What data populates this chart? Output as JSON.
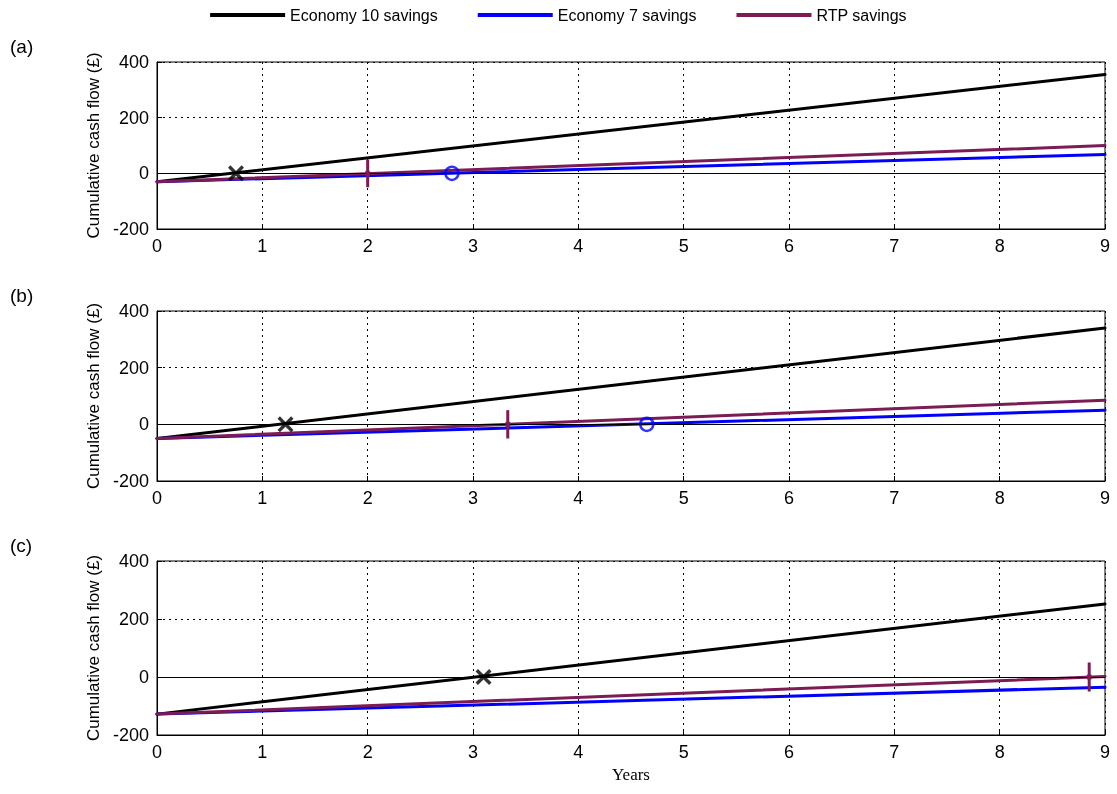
{
  "chart_data": [
    {
      "type": "line",
      "title": "(a)",
      "ylabel": "Cumulative cash flow (£)",
      "xlim": [
        0,
        9
      ],
      "xticks": [
        0,
        1,
        2,
        3,
        4,
        5,
        6,
        7,
        8,
        9
      ],
      "ylim": [
        -200,
        400
      ],
      "yticks": [
        -200,
        0,
        200,
        400
      ],
      "grid": true,
      "legend": "top",
      "ref_lines": [
        {
          "axis": "y",
          "value": 0,
          "color": "#000000"
        }
      ],
      "series": [
        {
          "name": "Economy 10 savings",
          "color": "#000000",
          "x": [
            0,
            9
          ],
          "values": [
            -30,
            355
          ]
        },
        {
          "name": "Economy 7 savings",
          "color": "#0000ff",
          "x": [
            0,
            9
          ],
          "values": [
            -30,
            68
          ]
        },
        {
          "name": "RTP savings",
          "color": "#7b1c55",
          "x": [
            0,
            9
          ],
          "values": [
            -30,
            100
          ]
        },
        {
          "type": "scatter",
          "marker": "cross",
          "color": "#000000",
          "x": [
            0.75
          ],
          "values": [
            0
          ]
        },
        {
          "type": "scatter",
          "marker": "circle",
          "color": "#0000ff",
          "x": [
            2.8
          ],
          "values": [
            0
          ]
        },
        {
          "type": "scatter",
          "marker": "square",
          "color": "#7b1c55",
          "x": [
            2
          ],
          "values": [
            0
          ],
          "errors": [
            50
          ]
        }
      ]
    },
    {
      "type": "line",
      "title": "(b)",
      "ylabel": "Cumulative cash flow (£)",
      "xlim": [
        0,
        9
      ],
      "xticks": [
        0,
        1,
        2,
        3,
        4,
        5,
        6,
        7,
        8,
        9
      ],
      "ylim": [
        -200,
        400
      ],
      "yticks": [
        -200,
        0,
        200,
        400
      ],
      "grid": true,
      "ref_lines": [
        {
          "axis": "y",
          "value": 0,
          "color": "#000000"
        }
      ],
      "series": [
        {
          "color": "#000000",
          "x": [
            0,
            9
          ],
          "values": [
            -50,
            340
          ]
        },
        {
          "color": "#0000ff",
          "x": [
            0,
            9
          ],
          "values": [
            -50,
            50
          ]
        },
        {
          "color": "#7b1c55",
          "x": [
            0,
            9
          ],
          "values": [
            -50,
            85
          ]
        },
        {
          "type": "scatter",
          "marker": "cross",
          "color": "#000000",
          "x": [
            1.22
          ],
          "values": [
            0
          ]
        },
        {
          "type": "scatter",
          "marker": "circle",
          "color": "#0000ff",
          "x": [
            4.65
          ],
          "values": [
            0
          ]
        },
        {
          "type": "scatter",
          "marker": "square",
          "color": "#7b1c55",
          "x": [
            3.33
          ],
          "values": [
            0
          ],
          "errors": [
            50
          ]
        }
      ]
    },
    {
      "type": "line",
      "title": "(c)",
      "xlabel": "Years",
      "ylabel": "Cumulative cash flow (£)",
      "xlim": [
        0,
        9
      ],
      "xticks": [
        0,
        1,
        2,
        3,
        4,
        5,
        6,
        7,
        8,
        9
      ],
      "ylim": [
        -200,
        400
      ],
      "yticks": [
        -200,
        0,
        200,
        400
      ],
      "grid": true,
      "ref_lines": [
        {
          "axis": "y",
          "value": 0,
          "color": "#000000"
        }
      ],
      "series": [
        {
          "color": "#000000",
          "x": [
            0,
            9
          ],
          "values": [
            -128,
            252
          ]
        },
        {
          "color": "#0000ff",
          "x": [
            0,
            9
          ],
          "values": [
            -128,
            -35
          ]
        },
        {
          "color": "#7b1c55",
          "x": [
            0,
            9
          ],
          "values": [
            -128,
            2
          ]
        },
        {
          "type": "scatter",
          "marker": "cross",
          "color": "#000000",
          "x": [
            3.1
          ],
          "values": [
            0
          ]
        },
        {
          "type": "scatter",
          "marker": "square",
          "color": "#7b1c55",
          "x": [
            8.85
          ],
          "values": [
            0
          ],
          "errors": [
            50
          ]
        }
      ]
    }
  ]
}
